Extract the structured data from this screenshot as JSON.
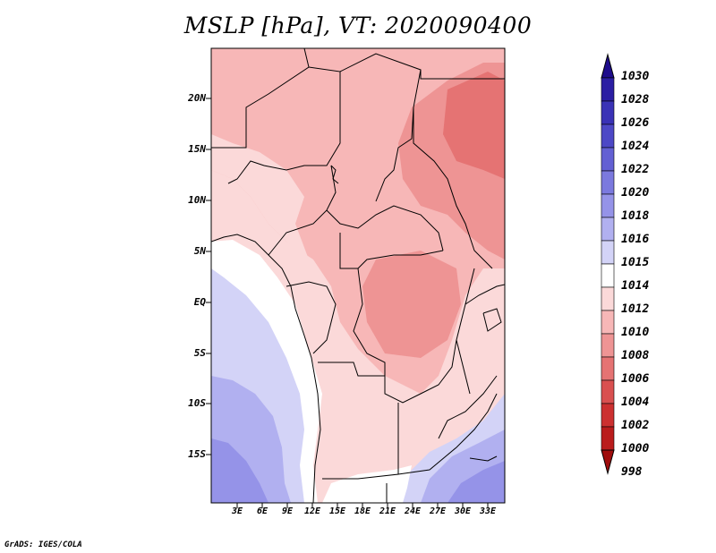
{
  "title": "MSLP [hPa], VT: 2020090400",
  "footer": "GrADS: IGES/COLA",
  "lat_labels": [
    "20N",
    "15N",
    "10N",
    "5N",
    "EQ",
    "5S",
    "10S",
    "15S"
  ],
  "lon_labels": [
    "3E",
    "6E",
    "9E",
    "12E",
    "15E",
    "18E",
    "21E",
    "24E",
    "27E",
    "30E",
    "33E"
  ],
  "colorbar": {
    "levels": [
      "1030",
      "1028",
      "1026",
      "1024",
      "1022",
      "1020",
      "1018",
      "1016",
      "1015",
      "1014",
      "1012",
      "1010",
      "1008",
      "1006",
      "1004",
      "1002",
      "1000",
      "998"
    ],
    "colors": [
      "#1e0c8c",
      "#2b1ea3",
      "#3a32b6",
      "#4d48c6",
      "#6360d3",
      "#7b79de",
      "#9593e8",
      "#b1b0f0",
      "#d3d3f7",
      "#ffffff",
      "#fbd9d9",
      "#f7b7b7",
      "#ee9494",
      "#e57373",
      "#d95050",
      "#cc3030",
      "#ba1c1c",
      "#a00d0d"
    ]
  },
  "regions": {
    "pressure_1014_fill": "#ffffff",
    "pressure_1015_fill": "#d3d3f7",
    "pressure_1016_fill": "#b1b0f0",
    "pressure_1018_fill": "#9593e8",
    "pressure_1012_fill": "#fbd9d9",
    "pressure_1010_fill": "#f7b7b7",
    "pressure_1008_fill": "#ee9494",
    "pressure_1006_fill": "#e57373"
  }
}
